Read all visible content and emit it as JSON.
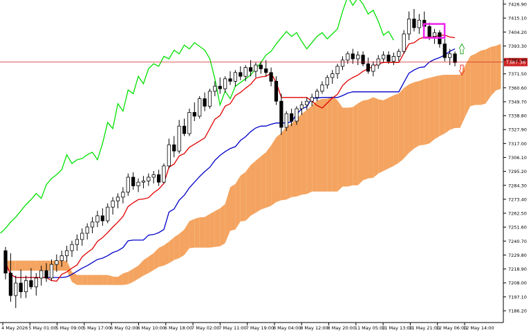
{
  "chart_data": {
    "type": "candlestick",
    "title": "",
    "colors": {
      "background": "#ffffff",
      "axis": "#000000",
      "bull_body": "#ffffff",
      "bear_body": "#000000",
      "tenkan": "#e00000",
      "kijun": "#0000c8",
      "chikou": "#00e000",
      "cloud_bull": "#f4a460",
      "cloud_bear": "#d8bfd8",
      "price_line": "#d02020",
      "marker": "#ee22ee",
      "arrow_up": "#22aa22",
      "arrow_down": "#ee3322",
      "price_tag_bg": "#cc2222",
      "price_tag_fg": "#ffffff"
    },
    "y_ticks": [
      "7426.90",
      "7415.10",
      "7404.20",
      "7393.30",
      "7382.40",
      "7371.50",
      "7360.60",
      "7349.70",
      "7338.80",
      "7327.90",
      "7317.00",
      "7306.10",
      "7295.20",
      "7284.30",
      "7273.40",
      "7262.50",
      "7251.60",
      "7240.70",
      "7229.80",
      "7218.90",
      "7208.00",
      "7197.10",
      "7186.20"
    ],
    "x_ticks": [
      "4 May 2026",
      "5 May 01:00",
      "5 May 09:00",
      "5 May 17:00",
      "6 May 02:00",
      "6 May 10:00",
      "6 May 18:00",
      "7 May 02:00",
      "7 May 11:00",
      "7 May 19:00",
      "8 May 04:00",
      "8 May 12:00",
      "8 May 20:00",
      "11 May 05:00",
      "11 May 13:00",
      "11 May 21:00",
      "12 May 06:00",
      "12 May 14:00"
    ],
    "current_price": "7387.38",
    "ylim": [
      7180,
      7435
    ],
    "candle_ohlc": [
      [
        7236,
        7239,
        7213,
        7218
      ],
      [
        7218,
        7234,
        7195,
        7200
      ],
      [
        7200,
        7216,
        7190,
        7210
      ],
      [
        7210,
        7221,
        7198,
        7203
      ],
      [
        7203,
        7216,
        7198,
        7212
      ],
      [
        7212,
        7222,
        7205,
        7207
      ],
      [
        7207,
        7218,
        7200,
        7214
      ],
      [
        7214,
        7224,
        7208,
        7220
      ],
      [
        7220,
        7226,
        7211,
        7214
      ],
      [
        7214,
        7229,
        7212,
        7225
      ],
      [
        7225,
        7233,
        7219,
        7228
      ],
      [
        7228,
        7236,
        7223,
        7232
      ],
      [
        7232,
        7240,
        7227,
        7236
      ],
      [
        7236,
        7244,
        7231,
        7241
      ],
      [
        7241,
        7249,
        7236,
        7245
      ],
      [
        7245,
        7254,
        7240,
        7250
      ],
      [
        7250,
        7258,
        7245,
        7255
      ],
      [
        7255,
        7263,
        7250,
        7259
      ],
      [
        7259,
        7268,
        7255,
        7264
      ],
      [
        7264,
        7270,
        7256,
        7260
      ],
      [
        7260,
        7274,
        7258,
        7271
      ],
      [
        7271,
        7279,
        7265,
        7276
      ],
      [
        7276,
        7282,
        7270,
        7279
      ],
      [
        7279,
        7287,
        7274,
        7283
      ],
      [
        7283,
        7298,
        7280,
        7295
      ],
      [
        7295,
        7299,
        7285,
        7288
      ],
      [
        7288,
        7294,
        7283,
        7291
      ],
      [
        7291,
        7296,
        7286,
        7292
      ],
      [
        7292,
        7298,
        7288,
        7295
      ],
      [
        7295,
        7300,
        7290,
        7297
      ],
      [
        7297,
        7301,
        7288,
        7291
      ],
      [
        7291,
        7306,
        7290,
        7304
      ],
      [
        7304,
        7326,
        7302,
        7321
      ],
      [
        7321,
        7328,
        7311,
        7316
      ],
      [
        7316,
        7341,
        7314,
        7336
      ],
      [
        7336,
        7342,
        7328,
        7330
      ],
      [
        7330,
        7350,
        7328,
        7347
      ],
      [
        7347,
        7355,
        7340,
        7344
      ],
      [
        7344,
        7360,
        7342,
        7358
      ],
      [
        7358,
        7363,
        7348,
        7352
      ],
      [
        7352,
        7366,
        7350,
        7364
      ],
      [
        7364,
        7372,
        7360,
        7368
      ],
      [
        7368,
        7375,
        7362,
        7366
      ],
      [
        7366,
        7376,
        7363,
        7374
      ],
      [
        7374,
        7380,
        7369,
        7372
      ],
      [
        7372,
        7381,
        7368,
        7379
      ],
      [
        7379,
        7384,
        7373,
        7376
      ],
      [
        7376,
        7385,
        7372,
        7383
      ],
      [
        7383,
        7389,
        7376,
        7380
      ],
      [
        7380,
        7387,
        7375,
        7385
      ],
      [
        7385,
        7388,
        7378,
        7382
      ],
      [
        7382,
        7389,
        7376,
        7379
      ],
      [
        7379,
        7383,
        7368,
        7372
      ],
      [
        7372,
        7376,
        7353,
        7356
      ],
      [
        7356,
        7362,
        7329,
        7335
      ],
      [
        7335,
        7348,
        7332,
        7346
      ],
      [
        7346,
        7350,
        7336,
        7340
      ],
      [
        7340,
        7352,
        7337,
        7350
      ],
      [
        7350,
        7356,
        7345,
        7353
      ],
      [
        7353,
        7359,
        7349,
        7356
      ],
      [
        7356,
        7362,
        7352,
        7359
      ],
      [
        7359,
        7366,
        7356,
        7364
      ],
      [
        7364,
        7372,
        7362,
        7369
      ],
      [
        7369,
        7377,
        7366,
        7375
      ],
      [
        7375,
        7381,
        7370,
        7378
      ],
      [
        7378,
        7386,
        7374,
        7384
      ],
      [
        7384,
        7392,
        7381,
        7389
      ],
      [
        7389,
        7396,
        7386,
        7394
      ],
      [
        7394,
        7398,
        7386,
        7390
      ],
      [
        7390,
        7396,
        7385,
        7393
      ],
      [
        7393,
        7396,
        7384,
        7386
      ],
      [
        7386,
        7391,
        7378,
        7380
      ],
      [
        7380,
        7388,
        7376,
        7385
      ],
      [
        7385,
        7393,
        7382,
        7390
      ],
      [
        7390,
        7396,
        7387,
        7393
      ],
      [
        7393,
        7396,
        7386,
        7388
      ],
      [
        7388,
        7395,
        7385,
        7392
      ],
      [
        7392,
        7398,
        7388,
        7396
      ],
      [
        7396,
        7413,
        7394,
        7410
      ],
      [
        7410,
        7428,
        7405,
        7422
      ],
      [
        7422,
        7430,
        7412,
        7415
      ],
      [
        7415,
        7426,
        7410,
        7421
      ],
      [
        7421,
        7428,
        7412,
        7416
      ],
      [
        7416,
        7419,
        7405,
        7408
      ],
      [
        7408,
        7414,
        7402,
        7411
      ],
      [
        7411,
        7413,
        7399,
        7402
      ],
      [
        7402,
        7406,
        7388,
        7391
      ],
      [
        7391,
        7398,
        7385,
        7394
      ],
      [
        7394,
        7396,
        7384,
        7387
      ]
    ]
  }
}
